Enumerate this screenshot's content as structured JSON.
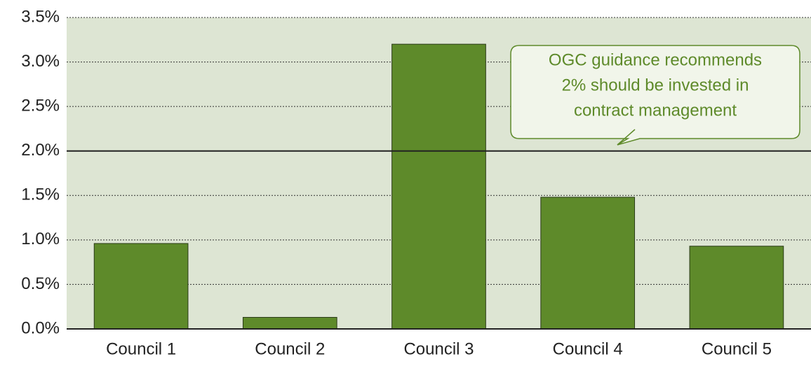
{
  "chart_data": {
    "type": "bar",
    "categories": [
      "Council 1",
      "Council 2",
      "Council 3",
      "Council 4",
      "Council 5"
    ],
    "values": [
      0.96,
      0.13,
      3.2,
      1.48,
      0.93
    ],
    "color": "#5e8a2a",
    "ylim": [
      0,
      3.5
    ],
    "yticks": [
      {
        "value": 0,
        "label": "0.0%"
      },
      {
        "value": 0.5,
        "label": "0.5%"
      },
      {
        "value": 1,
        "label": "1.0%"
      },
      {
        "value": 1.5,
        "label": "1.5%"
      },
      {
        "value": 2,
        "label": "2.0%"
      },
      {
        "value": 2.5,
        "label": "2.5%"
      },
      {
        "value": 3,
        "label": "3.0%"
      },
      {
        "value": 3.5,
        "label": "3.5%"
      }
    ],
    "grid": true,
    "reference_line": 2,
    "annotation": [
      "OGC guidance recommends",
      "2% should be invested in",
      "contract management"
    ]
  }
}
